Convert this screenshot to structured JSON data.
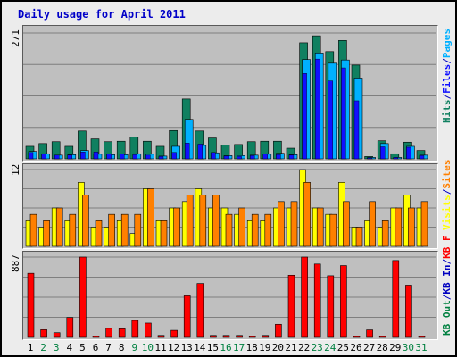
{
  "title": "Daily usage for April 2011",
  "colors": {
    "title": "#0000c8",
    "pages": "#00b0ff",
    "files": "#1010ff",
    "hits": "#108060",
    "visits": "#ffff00",
    "sites": "#ff8000",
    "kb_f": "#ff0000",
    "kb_in": "#0000c0",
    "kb_out": "#008040",
    "grid": "#7f7f7f",
    "panel": "#bfbfbf",
    "day_weekday": "#000000",
    "day_weekend": "#008040"
  },
  "chart_data": {
    "type": "bar",
    "categories": [
      "1",
      "2",
      "3",
      "4",
      "5",
      "6",
      "7",
      "8",
      "9",
      "10",
      "11",
      "12",
      "13",
      "14",
      "15",
      "16",
      "17",
      "18",
      "19",
      "20",
      "21",
      "22",
      "23",
      "24",
      "25",
      "26",
      "27",
      "28",
      "29",
      "30",
      "31"
    ],
    "weekend_days": [
      "2",
      "3",
      "9",
      "10",
      "16",
      "17",
      "23",
      "24",
      "30",
      "31"
    ],
    "panels": [
      {
        "id": "usage",
        "ymax_label": "271",
        "ylim": [
          0,
          271
        ],
        "legend": [
          {
            "label": "Hits",
            "color_key": "hits"
          },
          {
            "label": "/",
            "color_key": "kb_in"
          },
          {
            "label": "Files",
            "color_key": "files"
          },
          {
            "label": "/",
            "color_key": "kb_in"
          },
          {
            "label": "Pages",
            "color_key": "pages"
          }
        ],
        "series": [
          {
            "name": "Hits",
            "color_key": "hits",
            "values": [
              27,
              33,
              37,
              27,
              60,
              43,
              37,
              38,
              47,
              38,
              27,
              61,
              129,
              60,
              45,
              30,
              31,
              37,
              38,
              38,
              23,
              250,
              265,
              231,
              255,
              202,
              5,
              39,
              11,
              36,
              18
            ]
          },
          {
            "name": "Files",
            "color_key": "files",
            "values": [
              14,
              10,
              8,
              8,
              15,
              15,
              10,
              10,
              9,
              8,
              5,
              14,
              34,
              32,
              14,
              6,
              5,
              7,
              10,
              9,
              8,
              184,
              215,
              168,
              196,
              125,
              2,
              26,
              3,
              25,
              7
            ]
          },
          {
            "name": "Pages",
            "color_key": "pages",
            "values": [
              16,
              11,
              8,
              9,
              18,
              10,
              9,
              9,
              11,
              10,
              6,
              27,
              85,
              29,
              13,
              7,
              7,
              8,
              10,
              12,
              9,
              214,
              228,
              206,
              213,
              174,
              3,
              33,
              3,
              27,
              8
            ]
          }
        ]
      },
      {
        "id": "visits",
        "ymax_label": "12",
        "ylim": [
          0,
          12
        ],
        "legend": [
          {
            "label": "Visits",
            "color_key": "visits"
          },
          {
            "label": "/",
            "color_key": "kb_in"
          },
          {
            "label": "Sites",
            "color_key": "sites"
          }
        ],
        "series": [
          {
            "name": "Visits",
            "color_key": "visits",
            "values": [
              4,
              3,
              6,
              4,
              10,
              3,
              3,
              4,
              2,
              9,
              4,
              6,
              7,
              9,
              6,
              6,
              5,
              4,
              4,
              6,
              6,
              12,
              6,
              5,
              10,
              3,
              4,
              3,
              6,
              8,
              6
            ]
          },
          {
            "name": "Sites",
            "color_key": "sites",
            "values": [
              5,
              4,
              6,
              5,
              8,
              4,
              5,
              5,
              5,
              9,
              4,
              6,
              8,
              8,
              8,
              5,
              6,
              5,
              5,
              7,
              7,
              10,
              6,
              5,
              7,
              3,
              7,
              4,
              6,
              6,
              7
            ]
          }
        ]
      },
      {
        "id": "kbytes",
        "ymax_label": "887",
        "ylim": [
          0,
          887
        ],
        "legend": [
          {
            "label": "KB Out",
            "color_key": "kb_out"
          },
          {
            "label": "/",
            "color_key": "kb_in"
          },
          {
            "label": "KB In",
            "color_key": "kb_in"
          },
          {
            "label": "/",
            "color_key": "kb_in"
          },
          {
            "label": "KB F",
            "color_key": "kb_f"
          }
        ],
        "series": [
          {
            "name": "KB F",
            "color_key": "kb_f",
            "values": [
              708,
              85,
              52,
              220,
              887,
              15,
              100,
              95,
              187,
              158,
              22,
              78,
              459,
              595,
              22,
              22,
              22,
              12,
              22,
              145,
              687,
              887,
              810,
              681,
              793,
              12,
              83,
              12,
              849,
              577,
              12
            ]
          }
        ]
      }
    ]
  }
}
